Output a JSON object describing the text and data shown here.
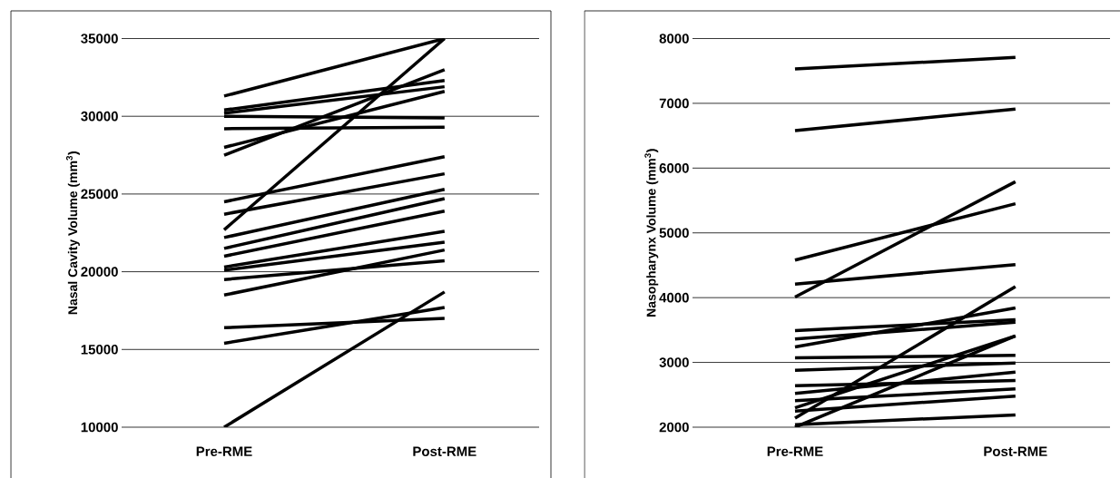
{
  "chart_data": [
    {
      "type": "line",
      "ylabel": "Nasal Cavity Volume (mm$^{3}$)",
      "categories": [
        "Pre-RME",
        "Post-RME"
      ],
      "ylim": [
        10000,
        35000
      ],
      "yticks": [
        10000,
        15000,
        20000,
        25000,
        30000,
        35000
      ],
      "grid": "y",
      "series": [
        {
          "color": "#000000",
          "values": [
            31300,
            35000
          ]
        },
        {
          "color": "#000000",
          "values": [
            30400,
            32300
          ]
        },
        {
          "color": "#000000",
          "values": [
            30200,
            31900
          ]
        },
        {
          "color": "#000000",
          "values": [
            30000,
            29900
          ]
        },
        {
          "color": "#000000",
          "values": [
            29200,
            29300
          ]
        },
        {
          "color": "#000000",
          "values": [
            28000,
            31600
          ]
        },
        {
          "color": "#000000",
          "values": [
            27500,
            33000
          ]
        },
        {
          "color": "#000000",
          "values": [
            24500,
            27400
          ]
        },
        {
          "color": "#000000",
          "values": [
            23700,
            26300
          ]
        },
        {
          "color": "#000000",
          "values": [
            22700,
            35000
          ]
        },
        {
          "color": "#000000",
          "values": [
            22200,
            25300
          ]
        },
        {
          "color": "#000000",
          "values": [
            21500,
            24700
          ]
        },
        {
          "color": "#000000",
          "values": [
            21000,
            23900
          ]
        },
        {
          "color": "#000000",
          "values": [
            20300,
            22600
          ]
        },
        {
          "color": "#000000",
          "values": [
            20100,
            21900
          ]
        },
        {
          "color": "#000000",
          "values": [
            19500,
            20700
          ]
        },
        {
          "color": "#000000",
          "values": [
            18500,
            21400
          ]
        },
        {
          "color": "#000000",
          "values": [
            16400,
            17000
          ]
        },
        {
          "color": "#000000",
          "values": [
            15400,
            17700
          ]
        },
        {
          "color": "#000000",
          "values": [
            10000,
            18700
          ]
        }
      ]
    },
    {
      "type": "line",
      "ylabel": "Nasopharynx Volume (mm$^{3}$)",
      "categories": [
        "Pre-RME",
        "Post-RME"
      ],
      "ylim": [
        2000,
        8000
      ],
      "yticks": [
        2000,
        3000,
        4000,
        5000,
        6000,
        7000,
        8000
      ],
      "grid": "y",
      "series": [
        {
          "color": "#000000",
          "values": [
            7530,
            7710
          ]
        },
        {
          "color": "#000000",
          "values": [
            6580,
            6910
          ]
        },
        {
          "color": "#000000",
          "values": [
            4580,
            5450
          ]
        },
        {
          "color": "#000000",
          "values": [
            4210,
            4510
          ]
        },
        {
          "color": "#000000",
          "values": [
            4010,
            5790
          ]
        },
        {
          "color": "#000000",
          "values": [
            3490,
            3660
          ]
        },
        {
          "color": "#000000",
          "values": [
            3360,
            3620
          ]
        },
        {
          "color": "#000000",
          "values": [
            3240,
            3840
          ]
        },
        {
          "color": "#000000",
          "values": [
            3070,
            3110
          ]
        },
        {
          "color": "#000000",
          "values": [
            2880,
            2990
          ]
        },
        {
          "color": "#000000",
          "values": [
            2640,
            2720
          ]
        },
        {
          "color": "#000000",
          "values": [
            2520,
            2850
          ]
        },
        {
          "color": "#000000",
          "values": [
            2410,
            2590
          ]
        },
        {
          "color": "#000000",
          "values": [
            2300,
            3410
          ]
        },
        {
          "color": "#000000",
          "values": [
            2250,
            2480
          ]
        },
        {
          "color": "#000000",
          "values": [
            2140,
            4170
          ]
        },
        {
          "color": "#000000",
          "values": [
            2040,
            2190
          ]
        },
        {
          "color": "#000000",
          "values": [
            2000,
            3410
          ]
        }
      ]
    }
  ]
}
